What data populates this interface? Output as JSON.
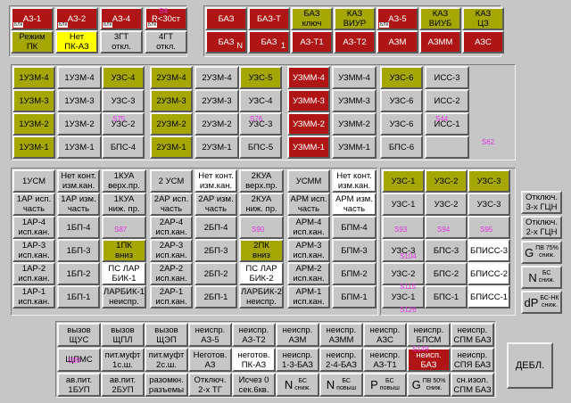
{
  "top_left": [
    {
      "id": "az1",
      "l1": "АЗ-1",
      "l2": "",
      "c": "r",
      "tag": "БЛК"
    },
    {
      "id": "az2",
      "l1": "АЗ-2",
      "l2": "",
      "c": "r",
      "tag": "БЛК"
    },
    {
      "id": "az4",
      "l1": "АЗ-4",
      "l2": "",
      "c": "r",
      "tag": "БЛК"
    },
    {
      "id": "r30",
      "l1": "R<30ст",
      "l2": "",
      "c": "r",
      "tag": "БЛК",
      "mg": "S4"
    },
    {
      "id": "rezhim",
      "l1": "Режим",
      "l2": "ПК",
      "c": "o"
    },
    {
      "id": "net",
      "l1": "Нет",
      "l2": "ПК-АЗ",
      "c": "y"
    },
    {
      "id": "3gt",
      "l1": "3ГТ",
      "l2": "откл.",
      "c": ""
    },
    {
      "id": "4gt",
      "l1": "4ГТ",
      "l2": "откл.",
      "c": ""
    }
  ],
  "top_right": [
    {
      "id": "baz",
      "l1": "БАЗ",
      "l2": "",
      "c": "r"
    },
    {
      "id": "bazt",
      "l1": "БАЗ-Т",
      "l2": "",
      "c": "r"
    },
    {
      "id": "bazkl",
      "l1": "БАЗ",
      "l2": "ключ",
      "c": "o"
    },
    {
      "id": "kazviur",
      "l1": "КАЗ",
      "l2": "ВИУР",
      "c": "o"
    },
    {
      "id": "az5",
      "l1": "АЗ-5",
      "l2": "",
      "c": "r",
      "tag": "БЛК"
    },
    {
      "id": "kazviub",
      "l1": "КАЗ",
      "l2": "ВИУБ",
      "c": "o"
    },
    {
      "id": "kazcz",
      "l1": "КАЗ",
      "l2": "ЦЗ",
      "c": "o"
    },
    {
      "id": "baz2",
      "l1": "БАЗ",
      "l2": "",
      "c": "r",
      "sub": "N"
    },
    {
      "id": "baz3",
      "l1": "БАЗ",
      "l2": "",
      "c": "r",
      "sub": "1"
    },
    {
      "id": "azt1",
      "l1": "АЗ-Т1",
      "l2": "",
      "c": "r"
    },
    {
      "id": "azt2",
      "l1": "АЗ-Т2",
      "l2": "",
      "c": "r"
    },
    {
      "id": "azm",
      "l1": "АЗМ",
      "l2": "",
      "c": "r"
    },
    {
      "id": "azmm",
      "l1": "АЗММ",
      "l2": "",
      "c": "r"
    },
    {
      "id": "azs",
      "l1": "АЗС",
      "l2": "",
      "c": "r"
    }
  ],
  "uzm_grid": [
    [
      "1УЗМ-4",
      "1УЗМ-4",
      "УЗС-4",
      "2УЗМ-4",
      "2УЗМ-4",
      "УЗС-5",
      "УЗММ-4",
      "УЗММ-4",
      "УЗС-6",
      "ИСС-3"
    ],
    [
      "1УЗМ-3",
      "1УЗМ-3",
      "УЗС-3",
      "2УЗМ-3",
      "2УЗМ-3",
      "УЗС-4",
      "УЗММ-3",
      "УЗММ-3",
      "УЗС-6",
      "ИСС-2"
    ],
    [
      "1УЗМ-2",
      "1УЗМ-2",
      "УЗС-2",
      "2УЗМ-2",
      "2УЗМ-2",
      "УЗС-3",
      "УЗММ-2",
      "УЗММ-2",
      "УЗС-6",
      "ИСС-1"
    ],
    [
      "1УЗМ-1",
      "1УЗМ-1",
      "БПС-4",
      "2УЗМ-1",
      "2УЗМ-1",
      "БПС-5",
      "УЗММ-1",
      "УЗММ-1",
      "БПС-6",
      ""
    ]
  ],
  "mid_row0": [
    {
      "l1": "1УСМ",
      "l2": ""
    },
    {
      "l1": "Нет конт.",
      "l2": "изм.кан."
    },
    {
      "l1": "1КУА",
      "l2": "верх.пр."
    },
    {
      "l1": "2 УСМ",
      "l2": ""
    },
    {
      "l1": "Нет конт.",
      "l2": "изм.кан."
    },
    {
      "l1": "2КУА",
      "l2": "верх.пр."
    },
    {
      "l1": "УСММ",
      "l2": ""
    },
    {
      "l1": "Нет конт.",
      "l2": "изм.кан."
    }
  ],
  "mid_row1": [
    {
      "l1": "1АР исп.",
      "l2": "часть"
    },
    {
      "l1": "1АР изм.",
      "l2": "часть"
    },
    {
      "l1": "1КУА",
      "l2": "ниж. пр."
    },
    {
      "l1": "2АР исп.",
      "l2": "часть"
    },
    {
      "l1": "2АР изм.",
      "l2": "часть"
    },
    {
      "l1": "2КУА",
      "l2": "ниж. пр."
    },
    {
      "l1": "АРМ исп.",
      "l2": "часть"
    },
    {
      "l1": "АРМ изм.",
      "l2": "часть"
    }
  ],
  "ar_rows": [
    [
      {
        "l1": "1АР-4",
        "l2": "исп.кан."
      },
      {
        "l1": "1БП-4",
        "l2": ""
      },
      {
        "l1": "",
        "l2": ""
      },
      {
        "l1": "2АР-4",
        "l2": "исп.кан."
      },
      {
        "l1": "2БП-4",
        "l2": ""
      },
      {
        "l1": "",
        "l2": ""
      },
      {
        "l1": "АРМ-4",
        "l2": "исп.кан."
      },
      {
        "l1": "БПМ-4",
        "l2": ""
      }
    ],
    [
      {
        "l1": "1АР-3",
        "l2": "исп.кан."
      },
      {
        "l1": "1БП-3",
        "l2": ""
      },
      {
        "l1": "1ПК",
        "l2": "вниз"
      },
      {
        "l1": "2АР-3",
        "l2": "исп.кан."
      },
      {
        "l1": "2БП-3",
        "l2": ""
      },
      {
        "l1": "2ПК",
        "l2": "вниз"
      },
      {
        "l1": "АРМ-3",
        "l2": "исп.кан."
      },
      {
        "l1": "БПМ-3",
        "l2": ""
      }
    ],
    [
      {
        "l1": "1АР-2",
        "l2": "исп.кан."
      },
      {
        "l1": "1БП-2",
        "l2": ""
      },
      {
        "l1": "ПС ЛАР",
        "l2": "БИК-1"
      },
      {
        "l1": "2АР-2",
        "l2": "исп.кан."
      },
      {
        "l1": "2БП-2",
        "l2": ""
      },
      {
        "l1": "ПС ЛАР",
        "l2": "БИК-2"
      },
      {
        "l1": "АРМ-2",
        "l2": "исп.кан."
      },
      {
        "l1": "БПМ-2",
        "l2": ""
      }
    ],
    [
      {
        "l1": "1АР-1",
        "l2": "исп.кан."
      },
      {
        "l1": "1БП-1",
        "l2": ""
      },
      {
        "l1": "ЛАРБИК-1",
        "l2": "неиспр."
      },
      {
        "l1": "2АР-1",
        "l2": "исп.кан."
      },
      {
        "l1": "2БП-1",
        "l2": ""
      },
      {
        "l1": "ЛАРБИК-2",
        "l2": "неиспр."
      },
      {
        "l1": "АРМ-1",
        "l2": "исп.кан."
      },
      {
        "l1": "БПМ-1",
        "l2": ""
      }
    ]
  ],
  "uzs_grid": [
    [
      "УЗС-1",
      "УЗС-2",
      "УЗС-3"
    ],
    [
      "УЗС-1",
      "УЗС-2",
      "УЗС-3"
    ],
    [
      "",
      "",
      ""
    ],
    [
      "УЗС-3",
      "БПС-3",
      "БПИСС-3"
    ],
    [
      "УЗС-2",
      "БПС-2",
      "БПИСС-2"
    ],
    [
      "УЗС-1",
      "БПС-1",
      "БПИСС-1"
    ]
  ],
  "right_col": [
    {
      "id": "otkl3",
      "l1": "Отключ.",
      "l2": "3-х ГЦН"
    },
    {
      "id": "otkl2",
      "l1": "Отключ.",
      "l2": "2-х ГЦН"
    },
    {
      "id": "g",
      "big": "G",
      "t1": "ПВ 75%",
      "t2": "сниж."
    },
    {
      "id": "n",
      "big": "N",
      "t1": "БС",
      "t2": "сниж."
    },
    {
      "id": "dp",
      "big": "dP",
      "t1": "БС-НК",
      "t2": "сниж."
    }
  ],
  "bottom_rows": [
    [
      {
        "l1": "вызов",
        "l2": "ЩУС"
      },
      {
        "l1": "вызов",
        "l2": "ЩПЛ"
      },
      {
        "l1": "вызов",
        "l2": "ЩЭП"
      },
      {
        "l1": "неиспр.",
        "l2": "АЗ-5"
      },
      {
        "l1": "неиспр.",
        "l2": "АЗ-Т2"
      },
      {
        "l1": "неиспр.",
        "l2": "АЗМ"
      },
      {
        "l1": "неиспр.",
        "l2": "АЗММ"
      },
      {
        "l1": "неиспр.",
        "l2": "АЗС"
      },
      {
        "l1": "неиспр.",
        "l2": "БПСМ"
      },
      {
        "l1": "неиспр.",
        "l2": "СПМ БАЗ"
      }
    ],
    [
      {
        "l1": "ЩПМС",
        "l2": ""
      },
      {
        "l1": "пит.муфт",
        "l2": "1с.ш."
      },
      {
        "l1": "пит.муфт",
        "l2": "2с.ш."
      },
      {
        "l1": "Неготов.",
        "l2": "АЗ"
      },
      {
        "l1": "неготов.",
        "l2": "ПК-АЗ"
      },
      {
        "l1": "неиспр.",
        "l2": "1-3-БАЗ"
      },
      {
        "l1": "неиспр.",
        "l2": "2-4-БАЗ"
      },
      {
        "l1": "неиспр.",
        "l2": "АЗ-Т1"
      },
      {
        "l1": "неисп.",
        "l2": "БАЗ"
      },
      {
        "l1": "неиспр.",
        "l2": "СПЯ БАЗ"
      }
    ],
    [
      {
        "l1": "ав.пит.",
        "l2": "1БУП"
      },
      {
        "l1": "ав.пит.",
        "l2": "2БУП"
      },
      {
        "l1": "разомкн.",
        "l2": "разъемы"
      },
      {
        "l1": "Отключ.",
        "l2": "2-х ТГ"
      },
      {
        "l1": "Исчез 0",
        "l2": "сек.6кв."
      },
      {
        "big": "N",
        "t1": "БС",
        "t2": "сниж."
      },
      {
        "big": "N",
        "t1": "БС",
        "t2": "повыш"
      },
      {
        "big": "P",
        "t1": "БС",
        "t2": "повыш"
      },
      {
        "big": "G",
        "t1": "ПВ 50%",
        "t2": "сниж."
      },
      {
        "l1": "сн.изол.",
        "l2": "СПМ БАЗ"
      }
    ]
  ],
  "debl_label": "ДЕБЛ.",
  "markers": {
    "s4": "S4",
    "s75": "S75",
    "s76": "S76",
    "s44": "S44",
    "s62": "S62",
    "s87": "S87",
    "s90": "S90",
    "s93": "S93",
    "s94": "S94",
    "s95": "S95",
    "s104": "S104",
    "s115": "S115",
    "s126": "S126",
    "s89": "S89",
    "s149": "S149"
  },
  "colors": {
    "red": "#b01515",
    "olive": "#a6a600",
    "yellow": "#ffff00",
    "white": "#ffffff",
    "gray": "#c6c6c6"
  }
}
